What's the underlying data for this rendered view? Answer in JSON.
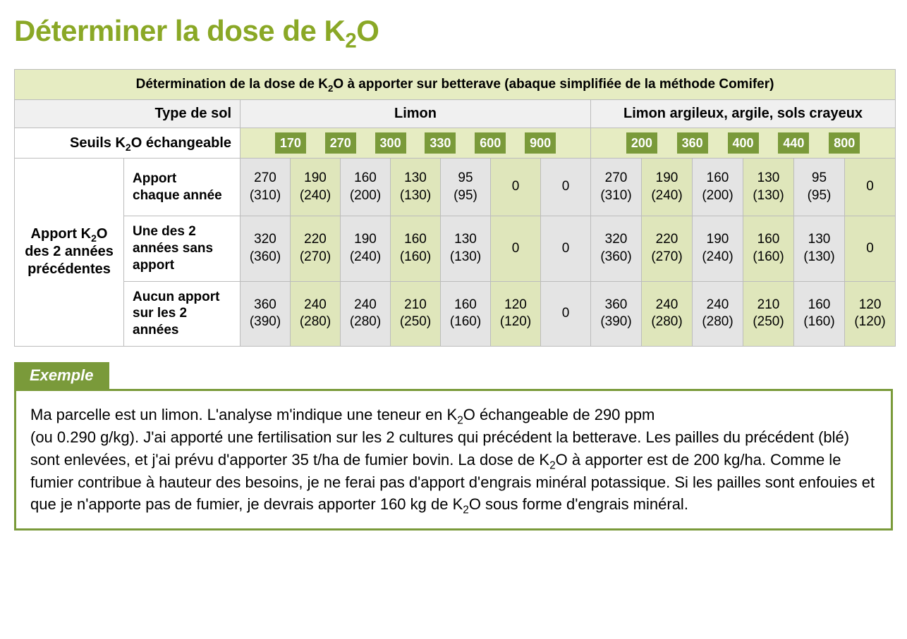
{
  "title_html": "Déterminer la dose de K<sub>2</sub>O",
  "table": {
    "caption_html": "Détermination de la dose de K<sub>2</sub>O à apporter sur betterave (abaque simplifiée de la méthode Comifer)",
    "soil_label": "Type de sol",
    "soil_types": [
      "Limon",
      "Limon argileux, argile, sols crayeux"
    ],
    "threshold_label_html": "Seuils K<sub>2</sub>O  échangeable",
    "thresholds": {
      "limon": [
        "170",
        "270",
        "300",
        "330",
        "600",
        "900"
      ],
      "argile": [
        "200",
        "360",
        "400",
        "440",
        "800"
      ]
    },
    "side_label_html": "Apport K<sub>2</sub>O<br>des 2 années<br>précédentes",
    "rows": [
      {
        "label_html": "Apport<br>chaque année",
        "limon": [
          [
            "270",
            "(310)"
          ],
          [
            "190",
            "(240)"
          ],
          [
            "160",
            "(200)"
          ],
          [
            "130",
            "(130)"
          ],
          [
            "95",
            "(95)"
          ],
          [
            "0",
            ""
          ],
          [
            "0",
            ""
          ]
        ],
        "argile": [
          [
            "270",
            "(310)"
          ],
          [
            "190",
            "(240)"
          ],
          [
            "160",
            "(200)"
          ],
          [
            "130",
            "(130)"
          ],
          [
            "95",
            "(95)"
          ],
          [
            "0",
            ""
          ]
        ]
      },
      {
        "label_html": "Une des 2<br>années sans<br>apport",
        "limon": [
          [
            "320",
            "(360)"
          ],
          [
            "220",
            "(270)"
          ],
          [
            "190",
            "(240)"
          ],
          [
            "160",
            "(160)"
          ],
          [
            "130",
            "(130)"
          ],
          [
            "0",
            ""
          ],
          [
            "0",
            ""
          ]
        ],
        "argile": [
          [
            "320",
            "(360)"
          ],
          [
            "220",
            "(270)"
          ],
          [
            "190",
            "(240)"
          ],
          [
            "160",
            "(160)"
          ],
          [
            "130",
            "(130)"
          ],
          [
            "0",
            ""
          ]
        ]
      },
      {
        "label_html": "Aucun apport<br>sur les 2 années",
        "limon": [
          [
            "360",
            "(390)"
          ],
          [
            "240",
            "(280)"
          ],
          [
            "240",
            "(280)"
          ],
          [
            "210",
            "(250)"
          ],
          [
            "160",
            "(160)"
          ],
          [
            "120",
            "(120)"
          ],
          [
            "0",
            ""
          ]
        ],
        "argile": [
          [
            "360",
            "(390)"
          ],
          [
            "240",
            "(280)"
          ],
          [
            "240",
            "(280)"
          ],
          [
            "210",
            "(250)"
          ],
          [
            "160",
            "(160)"
          ],
          [
            "120",
            "(120)"
          ]
        ]
      }
    ],
    "col_widths": {
      "side": 155,
      "sub": 165,
      "limon_col": 71,
      "argile_col": 72
    },
    "colors": {
      "header_bg": "#e6ecc2",
      "gray_bg": "#f0f0f0",
      "chip_bg": "#7a9a3a",
      "chip_fg": "#ffffff",
      "val_even": "#dfe6bb",
      "val_odd": "#e4e4e4",
      "border": "#bcbcbc"
    }
  },
  "exemple": {
    "tab": "Exemple",
    "body_html": "Ma parcelle est un limon. L'analyse m'indique une teneur en K<sub>2</sub>O échangeable de 290 ppm<br>(ou 0.290 g/kg). J'ai apporté une fertilisation sur les 2 cultures qui précédent la betterave. Les pailles du précédent (blé) sont enlevées, et j'ai prévu d'apporter 35 t/ha de fumier bovin. La dose de K<sub>2</sub>O à apporter est de 200 kg/ha. Comme le fumier contribue à hauteur des besoins, je ne ferai pas d'apport d'engrais minéral potassique. Si les pailles sont enfouies et que je n'apporte pas de fumier, je devrais apporter 160 kg de K<sub>2</sub>O sous forme d'engrais minéral."
  }
}
